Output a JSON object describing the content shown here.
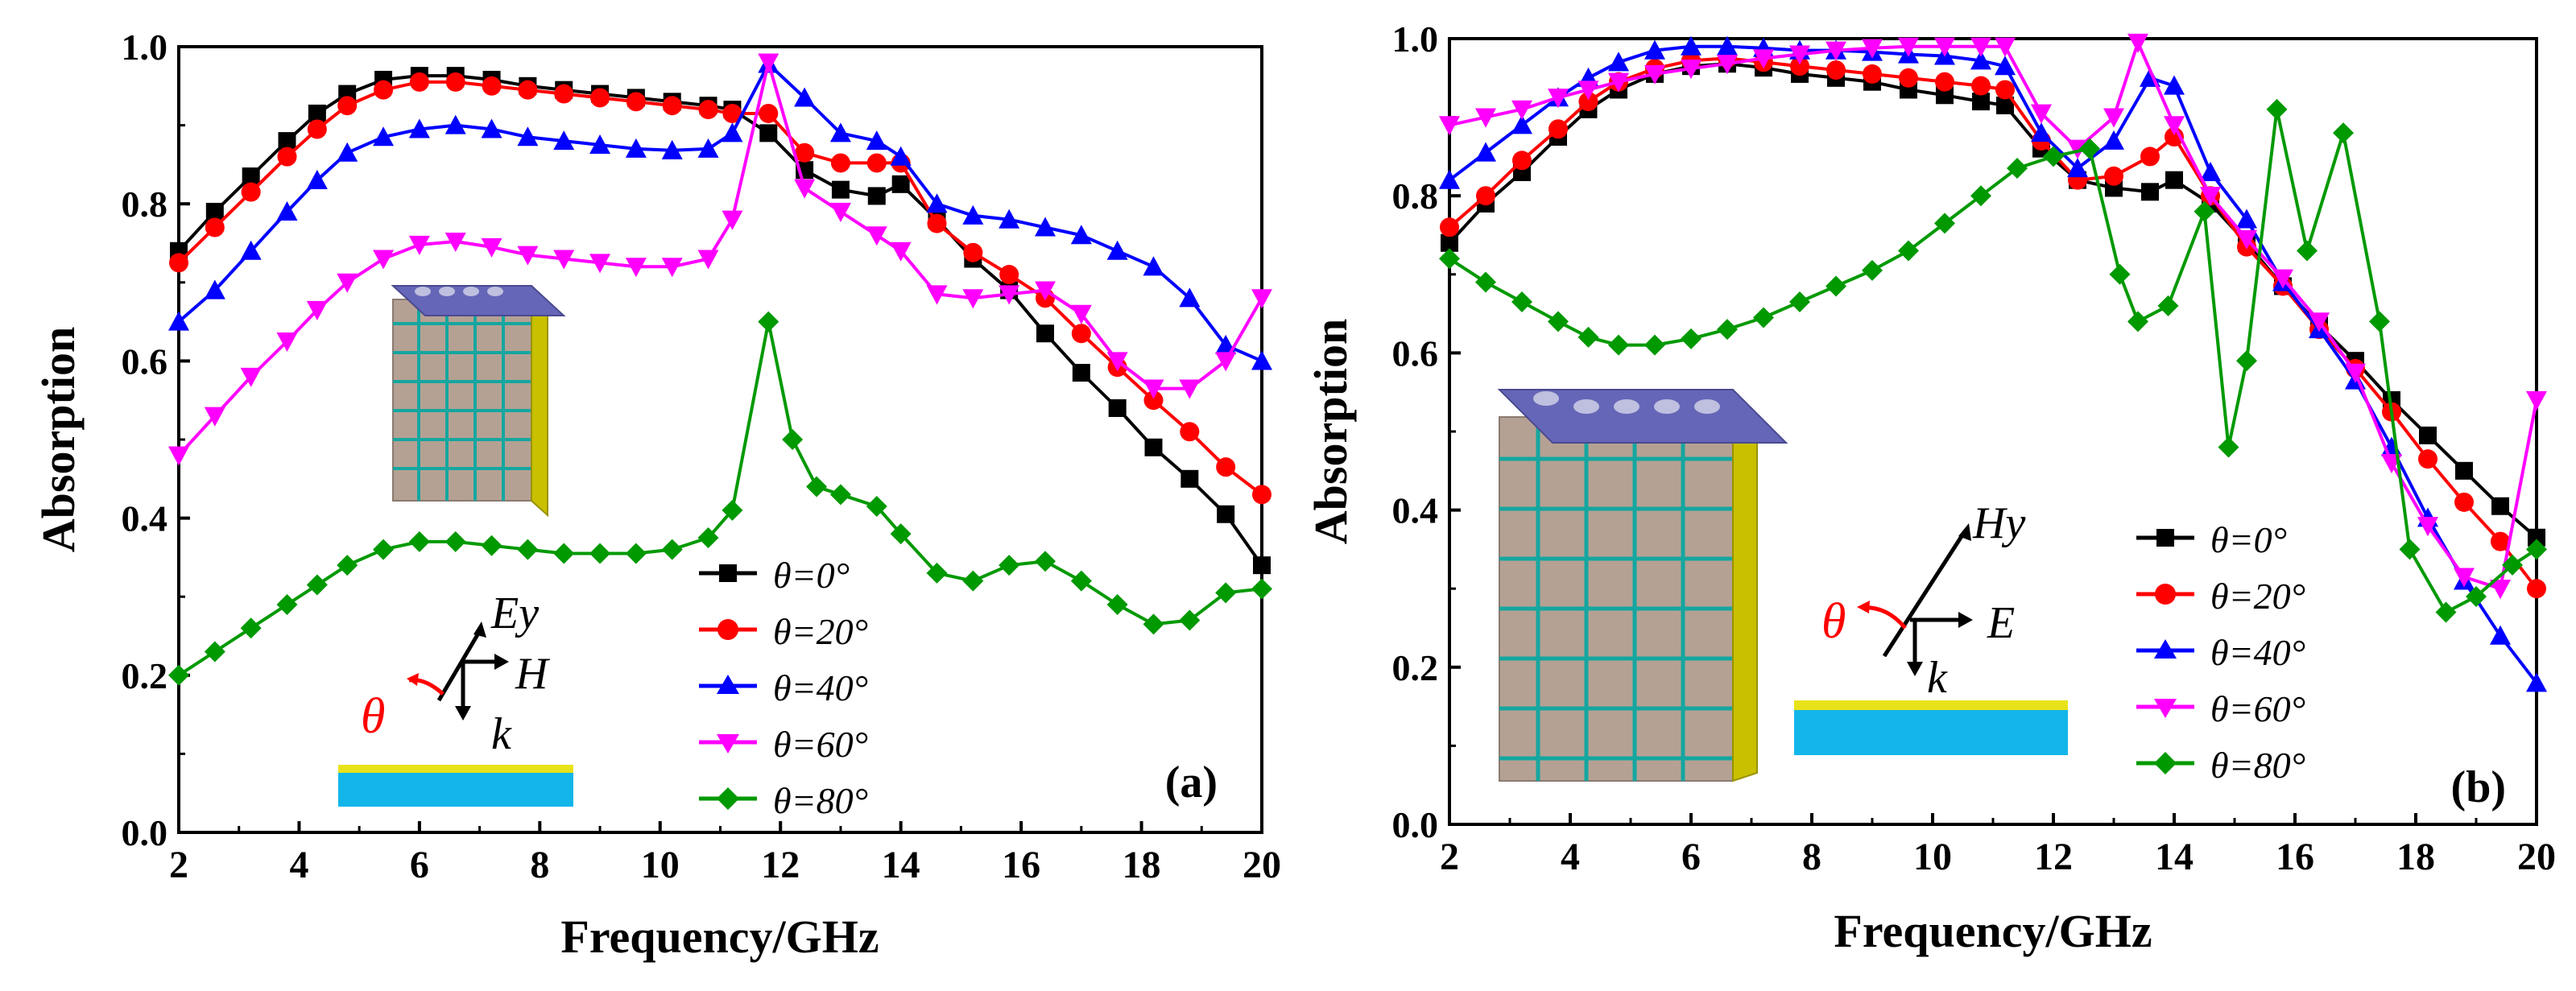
{
  "chart_data": [
    {
      "type": "line",
      "panel_label": "(a)",
      "xlabel": "Frequency/GHz",
      "ylabel": "Absorption",
      "xlim": [
        2,
        20
      ],
      "ylim": [
        0.0,
        1.0
      ],
      "xticks": [
        "2",
        "4",
        "6",
        "8",
        "10",
        "12",
        "14",
        "16",
        "18",
        "20"
      ],
      "yticks": [
        "0.0",
        "0.2",
        "0.4",
        "0.6",
        "0.8",
        "1.0"
      ],
      "legend_position": "bottom-right",
      "inset_labels": {
        "theta": "θ",
        "e": "Ey",
        "h": "H",
        "k": "k"
      },
      "series": [
        {
          "name": "θ=0°",
          "color": "#000000",
          "marker": "square",
          "x": [
            2,
            2.6,
            3.2,
            3.8,
            4.3,
            4.8,
            5.4,
            6.0,
            6.6,
            7.2,
            7.8,
            8.4,
            9.0,
            9.6,
            10.2,
            10.8,
            11.2,
            11.8,
            12.4,
            13.0,
            13.6,
            14.0,
            14.6,
            15.2,
            15.8,
            16.4,
            17.0,
            17.6,
            18.2,
            18.8,
            19.4,
            20
          ],
          "y": [
            0.74,
            0.79,
            0.835,
            0.88,
            0.915,
            0.94,
            0.958,
            0.963,
            0.963,
            0.958,
            0.95,
            0.945,
            0.94,
            0.935,
            0.93,
            0.925,
            0.92,
            0.89,
            0.843,
            0.818,
            0.81,
            0.825,
            0.78,
            0.73,
            0.69,
            0.635,
            0.585,
            0.54,
            0.49,
            0.45,
            0.405,
            0.34
          ]
        },
        {
          "name": "θ=20°",
          "color": "#ff0000",
          "marker": "circle",
          "x": [
            2,
            2.6,
            3.2,
            3.8,
            4.3,
            4.8,
            5.4,
            6.0,
            6.6,
            7.2,
            7.8,
            8.4,
            9.0,
            9.6,
            10.2,
            10.8,
            11.2,
            11.8,
            12.4,
            13.0,
            13.6,
            14.0,
            14.6,
            15.2,
            15.8,
            16.4,
            17.0,
            17.6,
            18.2,
            18.8,
            19.4,
            20
          ],
          "y": [
            0.725,
            0.77,
            0.815,
            0.86,
            0.895,
            0.925,
            0.945,
            0.955,
            0.955,
            0.95,
            0.945,
            0.94,
            0.935,
            0.93,
            0.925,
            0.92,
            0.915,
            0.915,
            0.865,
            0.852,
            0.852,
            0.852,
            0.775,
            0.738,
            0.71,
            0.68,
            0.635,
            0.592,
            0.55,
            0.51,
            0.465,
            0.43
          ]
        },
        {
          "name": "θ=40°",
          "color": "#0000ff",
          "marker": "triangle-up",
          "x": [
            2,
            2.6,
            3.2,
            3.8,
            4.3,
            4.8,
            5.4,
            6.0,
            6.6,
            7.2,
            7.8,
            8.4,
            9.0,
            9.6,
            10.2,
            10.8,
            11.2,
            11.8,
            12.4,
            13.0,
            13.6,
            14.0,
            14.6,
            15.2,
            15.8,
            16.4,
            17.0,
            17.6,
            18.2,
            18.8,
            19.4,
            20
          ],
          "y": [
            0.65,
            0.69,
            0.74,
            0.79,
            0.83,
            0.865,
            0.885,
            0.895,
            0.9,
            0.895,
            0.885,
            0.88,
            0.875,
            0.87,
            0.868,
            0.87,
            0.89,
            0.978,
            0.935,
            0.89,
            0.88,
            0.86,
            0.8,
            0.785,
            0.78,
            0.77,
            0.76,
            0.74,
            0.72,
            0.68,
            0.62,
            0.6
          ]
        },
        {
          "name": "θ=60°",
          "color": "#ff00ff",
          "marker": "triangle-down",
          "x": [
            2,
            2.6,
            3.2,
            3.8,
            4.3,
            4.8,
            5.4,
            6.0,
            6.6,
            7.2,
            7.8,
            8.4,
            9.0,
            9.6,
            10.2,
            10.8,
            11.2,
            11.8,
            12.4,
            13.0,
            13.6,
            14.0,
            14.6,
            15.2,
            15.8,
            16.4,
            17.0,
            17.6,
            18.2,
            18.8,
            19.4,
            20
          ],
          "y": [
            0.48,
            0.53,
            0.58,
            0.625,
            0.665,
            0.7,
            0.73,
            0.748,
            0.752,
            0.745,
            0.735,
            0.73,
            0.725,
            0.72,
            0.72,
            0.73,
            0.78,
            0.98,
            0.82,
            0.79,
            0.76,
            0.74,
            0.685,
            0.68,
            0.685,
            0.69,
            0.66,
            0.6,
            0.565,
            0.565,
            0.6,
            0.68
          ]
        },
        {
          "name": "θ=80°",
          "color": "#009900",
          "marker": "diamond",
          "x": [
            2,
            2.6,
            3.2,
            3.8,
            4.3,
            4.8,
            5.4,
            6.0,
            6.6,
            7.2,
            7.8,
            8.4,
            9.0,
            9.6,
            10.2,
            10.8,
            11.2,
            11.8,
            12.2,
            12.6,
            13.0,
            13.6,
            14.0,
            14.6,
            15.2,
            15.8,
            16.4,
            17.0,
            17.6,
            18.2,
            18.8,
            19.4,
            20
          ],
          "y": [
            0.2,
            0.23,
            0.26,
            0.29,
            0.315,
            0.34,
            0.36,
            0.37,
            0.37,
            0.365,
            0.36,
            0.355,
            0.355,
            0.355,
            0.36,
            0.375,
            0.41,
            0.65,
            0.5,
            0.44,
            0.43,
            0.415,
            0.38,
            0.33,
            0.32,
            0.34,
            0.345,
            0.32,
            0.29,
            0.265,
            0.27,
            0.305,
            0.31
          ]
        }
      ]
    },
    {
      "type": "line",
      "panel_label": "(b)",
      "xlabel": "Frequency/GHz",
      "ylabel": "Absorption",
      "xlim": [
        2,
        20
      ],
      "ylim": [
        0.0,
        1.0
      ],
      "xticks": [
        "2",
        "4",
        "6",
        "8",
        "10",
        "12",
        "14",
        "16",
        "18",
        "20"
      ],
      "yticks": [
        "0.0",
        "0.2",
        "0.4",
        "0.6",
        "0.8",
        "1.0"
      ],
      "legend_position": "bottom-right",
      "inset_labels": {
        "theta": "θ",
        "h": "Hy",
        "e": "E",
        "k": "k"
      },
      "series": [
        {
          "name": "θ=0°",
          "color": "#000000",
          "marker": "square",
          "x": [
            2,
            2.6,
            3.2,
            3.8,
            4.3,
            4.8,
            5.4,
            6.0,
            6.6,
            7.2,
            7.8,
            8.4,
            9.0,
            9.6,
            10.2,
            10.8,
            11.2,
            11.8,
            12.4,
            13.0,
            13.6,
            14.0,
            14.6,
            15.2,
            15.8,
            16.4,
            17.0,
            17.6,
            18.2,
            18.8,
            19.4,
            20
          ],
          "y": [
            0.74,
            0.79,
            0.83,
            0.875,
            0.91,
            0.935,
            0.955,
            0.965,
            0.968,
            0.963,
            0.955,
            0.95,
            0.945,
            0.935,
            0.928,
            0.92,
            0.915,
            0.86,
            0.82,
            0.81,
            0.805,
            0.82,
            0.79,
            0.74,
            0.685,
            0.635,
            0.59,
            0.54,
            0.495,
            0.45,
            0.405,
            0.365
          ]
        },
        {
          "name": "θ=20°",
          "color": "#ff0000",
          "marker": "circle",
          "x": [
            2,
            2.6,
            3.2,
            3.8,
            4.3,
            4.8,
            5.4,
            6.0,
            6.6,
            7.2,
            7.8,
            8.4,
            9.0,
            9.6,
            10.2,
            10.8,
            11.2,
            11.8,
            12.4,
            13.0,
            13.6,
            14.0,
            14.6,
            15.2,
            15.8,
            16.4,
            17.0,
            17.6,
            18.2,
            18.8,
            19.4,
            20
          ],
          "y": [
            0.76,
            0.8,
            0.845,
            0.885,
            0.92,
            0.945,
            0.962,
            0.972,
            0.975,
            0.97,
            0.965,
            0.96,
            0.955,
            0.95,
            0.945,
            0.94,
            0.935,
            0.87,
            0.82,
            0.825,
            0.85,
            0.875,
            0.8,
            0.735,
            0.685,
            0.63,
            0.58,
            0.525,
            0.465,
            0.41,
            0.36,
            0.3
          ]
        },
        {
          "name": "θ=40°",
          "color": "#0000ff",
          "marker": "triangle-up",
          "x": [
            2,
            2.6,
            3.2,
            3.8,
            4.3,
            4.8,
            5.4,
            6.0,
            6.6,
            7.2,
            7.8,
            8.4,
            9.0,
            9.6,
            10.2,
            10.8,
            11.2,
            11.8,
            12.4,
            13.0,
            13.6,
            14.0,
            14.6,
            15.2,
            15.8,
            16.4,
            17.0,
            17.6,
            18.2,
            18.8,
            19.4,
            20
          ],
          "y": [
            0.82,
            0.855,
            0.89,
            0.925,
            0.95,
            0.97,
            0.985,
            0.99,
            0.99,
            0.988,
            0.985,
            0.985,
            0.983,
            0.98,
            0.978,
            0.972,
            0.965,
            0.88,
            0.835,
            0.87,
            0.95,
            0.94,
            0.83,
            0.77,
            0.69,
            0.63,
            0.565,
            0.48,
            0.39,
            0.31,
            0.24,
            0.18
          ]
        },
        {
          "name": "θ=60°",
          "color": "#ff00ff",
          "marker": "triangle-down",
          "x": [
            2,
            2.6,
            3.2,
            3.8,
            4.3,
            4.8,
            5.4,
            6.0,
            6.6,
            7.2,
            7.8,
            8.4,
            9.0,
            9.6,
            10.2,
            10.8,
            11.2,
            11.8,
            12.4,
            13.0,
            13.4,
            14.0,
            14.6,
            15.2,
            15.8,
            16.4,
            17.0,
            17.6,
            18.2,
            18.8,
            19.4,
            20
          ],
          "y": [
            0.89,
            0.9,
            0.91,
            0.925,
            0.935,
            0.945,
            0.955,
            0.962,
            0.968,
            0.975,
            0.98,
            0.985,
            0.988,
            0.99,
            0.99,
            0.99,
            0.99,
            0.905,
            0.86,
            0.9,
            0.995,
            0.89,
            0.8,
            0.745,
            0.695,
            0.64,
            0.575,
            0.46,
            0.38,
            0.315,
            0.3,
            0.54
          ]
        },
        {
          "name": "θ=80°",
          "color": "#009900",
          "marker": "diamond",
          "x": [
            2,
            2.6,
            3.2,
            3.8,
            4.3,
            4.8,
            5.4,
            6.0,
            6.6,
            7.2,
            7.8,
            8.4,
            9.0,
            9.6,
            10.2,
            10.8,
            11.4,
            12.0,
            12.6,
            13.1,
            13.4,
            13.9,
            14.5,
            14.9,
            15.2,
            15.7,
            16.2,
            16.8,
            17.4,
            17.9,
            18.5,
            19.0,
            19.6,
            20
          ],
          "y": [
            0.72,
            0.69,
            0.665,
            0.64,
            0.62,
            0.61,
            0.61,
            0.618,
            0.63,
            0.645,
            0.665,
            0.685,
            0.705,
            0.73,
            0.765,
            0.8,
            0.835,
            0.85,
            0.86,
            0.7,
            0.64,
            0.66,
            0.78,
            0.48,
            0.59,
            0.91,
            0.73,
            0.88,
            0.64,
            0.35,
            0.27,
            0.29,
            0.33,
            0.35
          ]
        }
      ]
    }
  ]
}
